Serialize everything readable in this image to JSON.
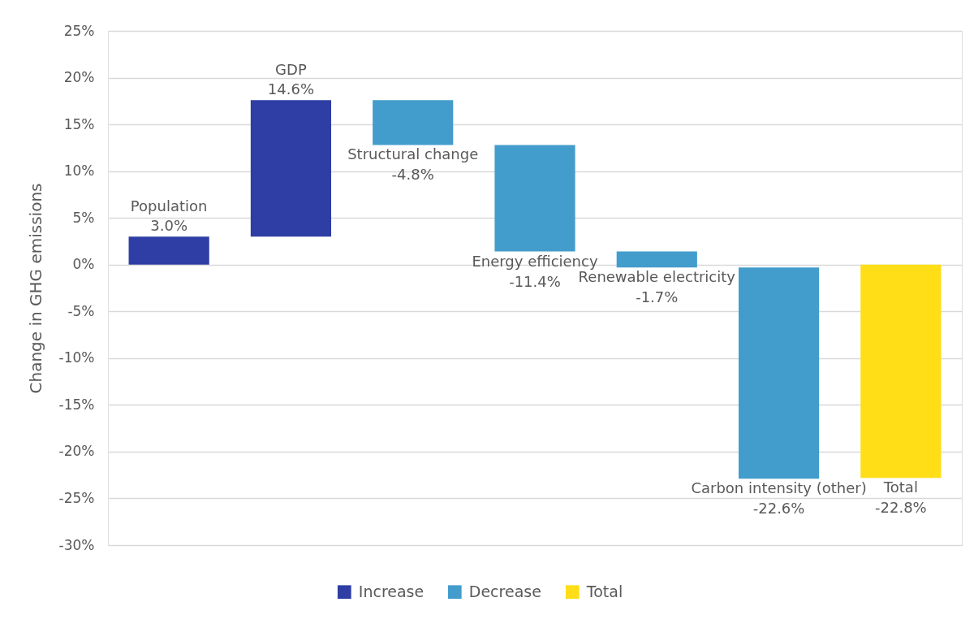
{
  "chart_data": {
    "type": "bar",
    "ylabel": "Change in GHG emissions",
    "categories": [
      "Population",
      "GDP",
      "Structural change",
      "Energy efficiency",
      "Renewable electricity",
      "Carbon intensity (other)",
      "Total"
    ],
    "series": [
      {
        "name": "Increase",
        "color": "#2e3ea4",
        "values": [
          3.0,
          14.6,
          null,
          null,
          null,
          null,
          null
        ],
        "base": [
          0,
          3.0,
          null,
          null,
          null,
          null,
          null
        ],
        "value_labels": [
          "3.0%",
          "14.6%",
          null,
          null,
          null,
          null,
          null
        ]
      },
      {
        "name": "Decrease",
        "color": "#439dcc",
        "values": [
          null,
          null,
          -4.8,
          -11.4,
          -1.7,
          -22.6,
          null
        ],
        "base": [
          null,
          null,
          17.6,
          12.8,
          1.4,
          -0.3,
          null
        ],
        "value_labels": [
          null,
          null,
          "-4.8%",
          "-11.4%",
          "-1.7%",
          "-22.6%",
          null
        ]
      },
      {
        "name": "Total",
        "color": "#ffdd17",
        "values": [
          null,
          null,
          null,
          null,
          null,
          null,
          -22.8
        ],
        "base": [
          null,
          null,
          null,
          null,
          null,
          null,
          0
        ],
        "value_labels": [
          null,
          null,
          null,
          null,
          null,
          null,
          "-22.8%"
        ]
      }
    ],
    "ylim": [
      -30,
      25
    ],
    "yticks": [
      {
        "value": -30,
        "label": "-30%"
      },
      {
        "value": -25,
        "label": "-25%"
      },
      {
        "value": -20,
        "label": "-20%"
      },
      {
        "value": -15,
        "label": "-15%"
      },
      {
        "value": -10,
        "label": "-10%"
      },
      {
        "value": -5,
        "label": "-5%"
      },
      {
        "value": 0,
        "label": "0%"
      },
      {
        "value": 5,
        "label": "5%"
      },
      {
        "value": 10,
        "label": "10%"
      },
      {
        "value": 15,
        "label": "15%"
      },
      {
        "value": 20,
        "label": "20%"
      },
      {
        "value": 25,
        "label": "25%"
      }
    ],
    "grid": "y",
    "legend": "bottom",
    "tick_labels": "y"
  }
}
